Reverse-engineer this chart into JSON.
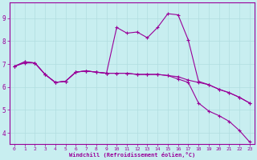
{
  "xlabel": "Windchill (Refroidissement éolien,°C)",
  "bg_color": "#c8eef0",
  "line_color": "#990099",
  "grid_color": "#b0dde0",
  "xlim": [
    -0.5,
    23.5
  ],
  "ylim": [
    3.5,
    9.7
  ],
  "yticks": [
    4,
    5,
    6,
    7,
    8,
    9
  ],
  "xticks": [
    0,
    1,
    2,
    3,
    4,
    5,
    6,
    7,
    8,
    9,
    10,
    11,
    12,
    13,
    14,
    15,
    16,
    17,
    18,
    19,
    20,
    21,
    22,
    23
  ],
  "curve1_x": [
    0,
    1,
    2,
    3,
    4,
    5,
    6,
    7,
    8,
    9,
    10,
    11,
    12,
    13,
    14,
    15,
    16,
    17,
    18,
    19,
    20,
    21,
    22,
    23
  ],
  "curve1_y": [
    6.9,
    7.05,
    7.05,
    6.55,
    6.2,
    6.25,
    6.65,
    6.7,
    6.65,
    6.6,
    6.6,
    6.6,
    6.55,
    6.55,
    6.55,
    6.5,
    6.45,
    6.3,
    6.2,
    6.1,
    5.9,
    5.75,
    5.55,
    5.3
  ],
  "curve2_x": [
    0,
    1,
    2,
    3,
    4,
    5,
    6,
    7,
    8,
    9,
    10,
    11,
    12,
    13,
    14,
    15,
    16,
    17,
    18,
    19,
    20,
    21,
    22,
    23
  ],
  "curve2_y": [
    6.9,
    7.1,
    7.05,
    6.55,
    6.2,
    6.25,
    6.65,
    6.7,
    6.65,
    6.6,
    8.6,
    8.35,
    8.4,
    8.15,
    8.6,
    9.2,
    9.15,
    8.05,
    6.25,
    6.1,
    5.9,
    5.75,
    5.55,
    5.3
  ],
  "curve3_x": [
    0,
    1,
    2,
    3,
    4,
    5,
    6,
    7,
    8,
    9,
    10,
    11,
    12,
    13,
    14,
    15,
    16,
    17,
    18,
    19,
    20,
    21,
    22,
    23
  ],
  "curve3_y": [
    6.9,
    7.1,
    7.05,
    6.55,
    6.2,
    6.25,
    6.65,
    6.7,
    6.65,
    6.6,
    6.6,
    6.6,
    6.55,
    6.55,
    6.55,
    6.5,
    6.35,
    6.2,
    5.3,
    4.95,
    4.75,
    4.5,
    4.1,
    3.6
  ]
}
